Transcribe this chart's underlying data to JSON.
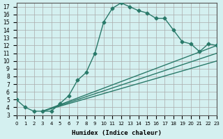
{
  "xlabel": "Humidex (Indice chaleur)",
  "ylabel": "",
  "background_color": "#d4f0f0",
  "line_color": "#2a7a6a",
  "grid_color": "#aaaaaa",
  "xlim": [
    0,
    23
  ],
  "ylim": [
    3,
    17.5
  ],
  "xticks": [
    0,
    1,
    2,
    3,
    4,
    5,
    6,
    7,
    8,
    9,
    10,
    11,
    12,
    13,
    14,
    15,
    16,
    17,
    18,
    19,
    20,
    21,
    22,
    23
  ],
  "yticks": [
    3,
    4,
    5,
    6,
    7,
    8,
    9,
    10,
    11,
    12,
    13,
    14,
    15,
    16,
    17
  ],
  "curve1_x": [
    0,
    1,
    2,
    3,
    4,
    5,
    6,
    7,
    8,
    9,
    10,
    11,
    12,
    13,
    14,
    15,
    16,
    17,
    18,
    19,
    20,
    21,
    22,
    23
  ],
  "curve1_y": [
    5.0,
    4.0,
    3.5,
    3.5,
    3.5,
    4.5,
    5.5,
    7.5,
    8.5,
    11.0,
    15.0,
    16.8,
    17.5,
    17.0,
    16.5,
    16.2,
    15.5,
    15.5,
    14.0,
    12.5,
    12.2,
    11.2,
    12.2,
    12.0
  ],
  "curve2_x": [
    3,
    23
  ],
  "curve2_y": [
    3.5,
    12.0
  ],
  "curve3_x": [
    3,
    23
  ],
  "curve3_y": [
    3.5,
    11.0
  ],
  "curve4_x": [
    3,
    23
  ],
  "curve4_y": [
    3.5,
    10.0
  ]
}
